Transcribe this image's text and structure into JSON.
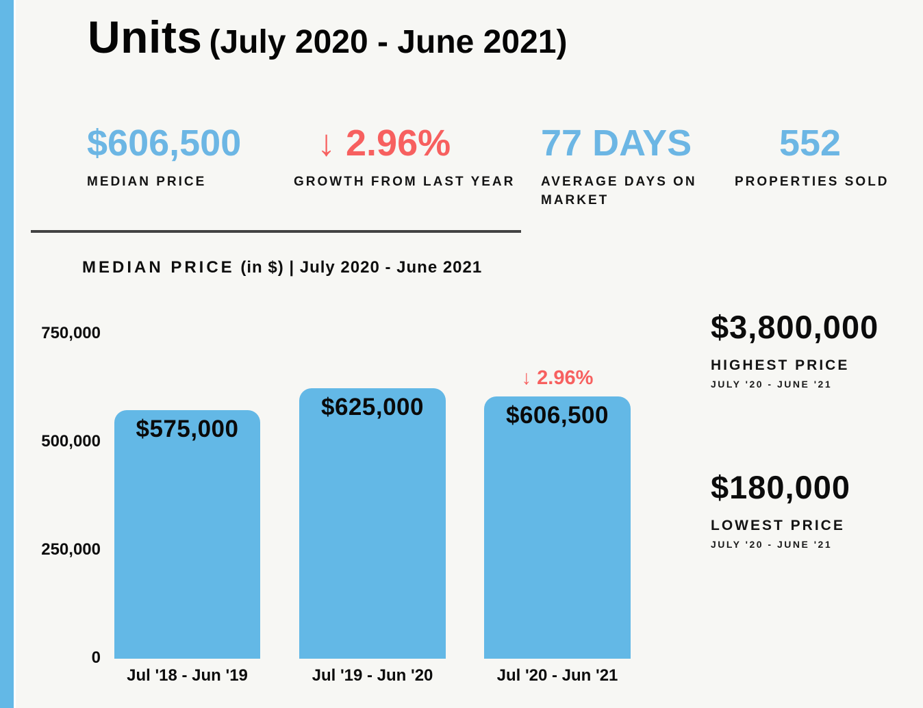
{
  "page": {
    "background": "#f7f7f4",
    "accent_blue": "#63b8e6",
    "accent_red": "#f7605f"
  },
  "header": {
    "title": "Units",
    "subtitle": "(July 2020 - June 2021)"
  },
  "stats": [
    {
      "value": "$606,500",
      "label": "MEDIAN PRICE",
      "color": "blue"
    },
    {
      "value": "↓ 2.96%",
      "label": "GROWTH FROM LAST YEAR",
      "color": "red"
    },
    {
      "value": "77 DAYS",
      "label": "AVERAGE DAYS ON MARKET",
      "color": "blue"
    },
    {
      "value": "552",
      "label": "PROPERTIES SOLD",
      "color": "blue"
    }
  ],
  "chart": {
    "heading_primary": "MEDIAN PRICE",
    "heading_secondary": "(in $) | July 2020 - June 2021"
  },
  "chart_data": {
    "type": "bar",
    "title": "MEDIAN PRICE (in $) | July 2020 - June 2021",
    "categories": [
      "Jul '18 - Jun '19",
      "Jul '19 - Jun '20",
      "Jul '20 - Jun '21"
    ],
    "values": [
      575000,
      625000,
      606500
    ],
    "bar_labels": [
      "$575,000",
      "$625,000",
      "$606,500"
    ],
    "annotation": {
      "bar_index": 2,
      "text": "↓ 2.96%"
    },
    "yticks": [
      0,
      250000,
      500000,
      750000
    ],
    "ytick_labels": [
      "0",
      "250,000",
      "500,000",
      "750,000"
    ],
    "ylim": [
      0,
      790000
    ],
    "grid": false,
    "legend": "none",
    "bar_color": "#63b8e6"
  },
  "side_stats": [
    {
      "value": "$3,800,000",
      "label": "HIGHEST PRICE",
      "period": "JULY '20 - JUNE '21"
    },
    {
      "value": "$180,000",
      "label": "LOWEST PRICE",
      "period": "JULY '20 - JUNE '21"
    }
  ]
}
